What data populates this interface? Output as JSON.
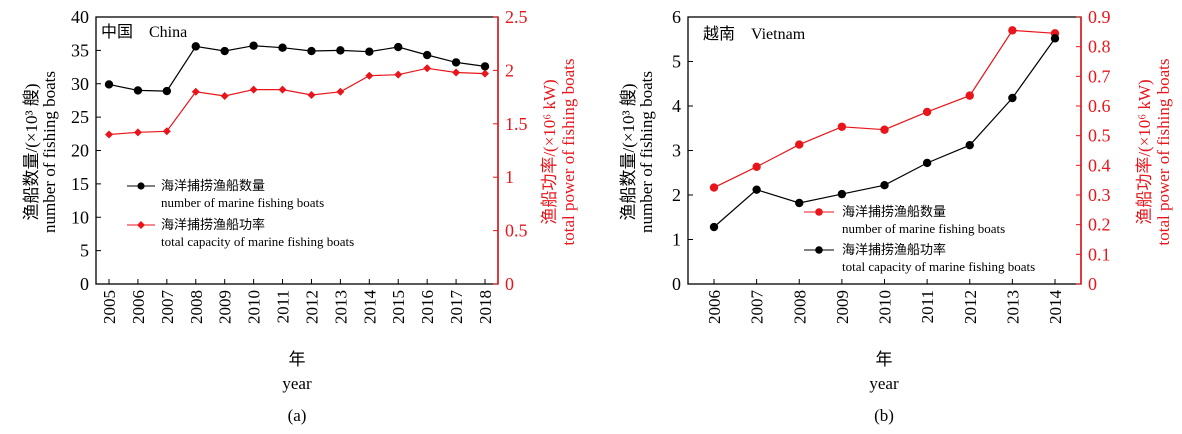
{
  "chart_data": [
    {
      "type": "line",
      "panel_label": "(a)",
      "country_label": "中国　China",
      "xlabel_cn": "年",
      "xlabel_en": "year",
      "ylabel_left_cn": "渔船数量/(×10³ 艘)",
      "ylabel_left_en": "number of fishing boats",
      "ylabel_right_cn": "渔船功率/(×10⁶ kW)",
      "ylabel_right_en": "total power of fishing boats",
      "categories": [
        "2005",
        "2006",
        "2007",
        "2008",
        "2009",
        "2010",
        "2011",
        "2012",
        "2013",
        "2014",
        "2015",
        "2016",
        "2017",
        "2018"
      ],
      "ylim_left": [
        0,
        40
      ],
      "yticks_left": [
        0,
        5,
        10,
        15,
        20,
        25,
        30,
        35,
        40
      ],
      "ylim_right": [
        0,
        2.5
      ],
      "yticks_right": [
        0,
        0.5,
        1.0,
        1.5,
        2.0,
        2.5
      ],
      "legend_position": "center-left",
      "series": [
        {
          "name_cn": "海洋捕捞渔船数量",
          "name_en": "number of marine fishing boats",
          "axis": "left",
          "color": "#000000",
          "marker": "circle",
          "values": [
            29.9,
            29.0,
            28.9,
            35.6,
            34.9,
            35.7,
            35.4,
            34.9,
            35.0,
            34.8,
            35.5,
            34.3,
            33.2,
            32.6
          ]
        },
        {
          "name_cn": "海洋捕捞渔船功率",
          "name_en": "total capacity of marine fishing boats",
          "axis": "right",
          "color": "#e8151b",
          "marker": "diamond",
          "values": [
            1.4,
            1.42,
            1.43,
            1.8,
            1.76,
            1.82,
            1.82,
            1.77,
            1.8,
            1.95,
            1.96,
            2.02,
            1.98,
            1.97
          ]
        }
      ]
    },
    {
      "type": "line",
      "panel_label": "(b)",
      "country_label": "越南　Vietnam",
      "xlabel_cn": "年",
      "xlabel_en": "year",
      "ylabel_left_cn": "渔船数量/(×10³ 艘)",
      "ylabel_left_en": "number of fishing boats",
      "ylabel_right_cn": "渔船功率/(×10⁶ kW)",
      "ylabel_right_en": "total power of fishing boats",
      "categories": [
        "2006",
        "2007",
        "2008",
        "2009",
        "2010",
        "2011",
        "2012",
        "2013",
        "2014"
      ],
      "ylim_left": [
        0,
        6
      ],
      "yticks_left": [
        0,
        1,
        2,
        3,
        4,
        5,
        6
      ],
      "ylim_right": [
        0,
        0.9
      ],
      "yticks_right": [
        0,
        0.1,
        0.2,
        0.3,
        0.4,
        0.5,
        0.6,
        0.7,
        0.8,
        0.9
      ],
      "legend_position": "center",
      "series": [
        {
          "name_cn": "海洋捕捞渔船数量",
          "name_en": "number of marine fishing boats",
          "axis": "right",
          "color": "#e8151b",
          "marker": "circle",
          "values": [
            0.325,
            0.395,
            0.47,
            0.53,
            0.52,
            0.58,
            0.635,
            0.855,
            0.845
          ]
        },
        {
          "name_cn": "海洋捕捞渔船功率",
          "name_en": "total capacity of marine fishing boats",
          "axis": "left",
          "color": "#000000",
          "marker": "circle",
          "values": [
            1.28,
            2.12,
            1.82,
            2.02,
            2.22,
            2.72,
            3.12,
            4.18,
            5.52
          ]
        }
      ]
    }
  ]
}
